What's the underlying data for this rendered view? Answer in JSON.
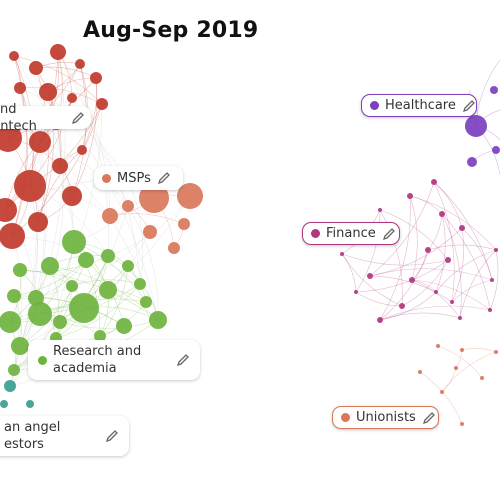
{
  "title": "Aug-Sep 2019",
  "clusters": [
    {
      "id": "payments",
      "label": "and fintech",
      "color": "#c0392b",
      "icon": "edit-icon"
    },
    {
      "id": "msps",
      "label": "MSPs",
      "color": "#d9775a",
      "icon": "edit-icon"
    },
    {
      "id": "research",
      "label": "Research and academia",
      "color": "#6fb33f",
      "icon": "edit-icon"
    },
    {
      "id": "angels",
      "label": "an angel estors",
      "color": "#3a9e8f",
      "icon": "edit-icon"
    },
    {
      "id": "healthcare",
      "label": "Healthcare",
      "color": "#7c3fbf",
      "icon": "edit-icon"
    },
    {
      "id": "finance",
      "label": "Finance",
      "color": "#b0367f",
      "icon": "edit-icon"
    },
    {
      "id": "unionists",
      "label": "Unionists",
      "color": "#d9775a",
      "icon": "edit-icon"
    }
  ]
}
